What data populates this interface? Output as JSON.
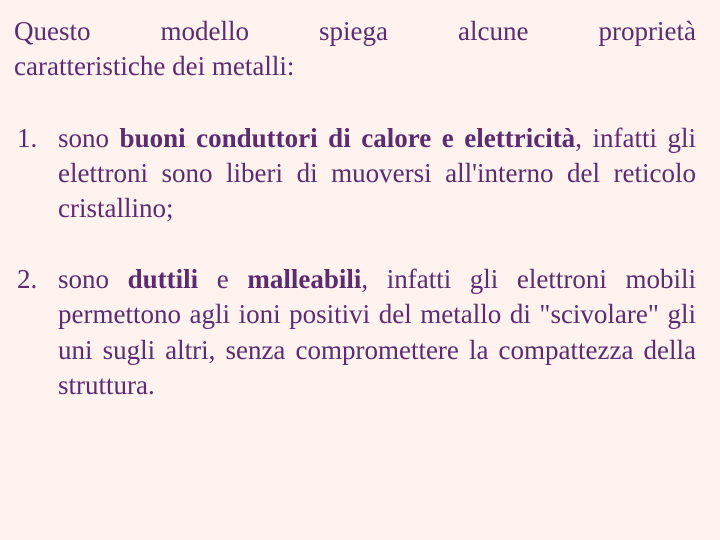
{
  "typography": {
    "font_family": "Georgia, Times New Roman, serif",
    "font_size": 27,
    "font_size_pt": 20,
    "line_height": 1.3
  },
  "colors": {
    "text": "#5b2c6f",
    "background": "#fff2ef"
  },
  "intro": {
    "line1": "Questo modello spiega alcune proprietà",
    "line2": "caratteristiche dei metalli:"
  },
  "items": [
    {
      "number": "1.",
      "pre": "sono",
      "bold": " buoni conduttori di calore e elettricità",
      "post": ", infatti gli elettroni sono liberi di muoversi all'interno del reticolo cristallino;"
    },
    {
      "number": "2.",
      "pre": "sono",
      "bold": " duttili",
      "mid": " e ",
      "bold2": " malleabili",
      "post": ", infatti gli elettroni mobili permettono  agli ioni positivi del metallo di \"scivolare\" gli uni sugli altri, senza compromettere la compattezza della struttura."
    }
  ]
}
